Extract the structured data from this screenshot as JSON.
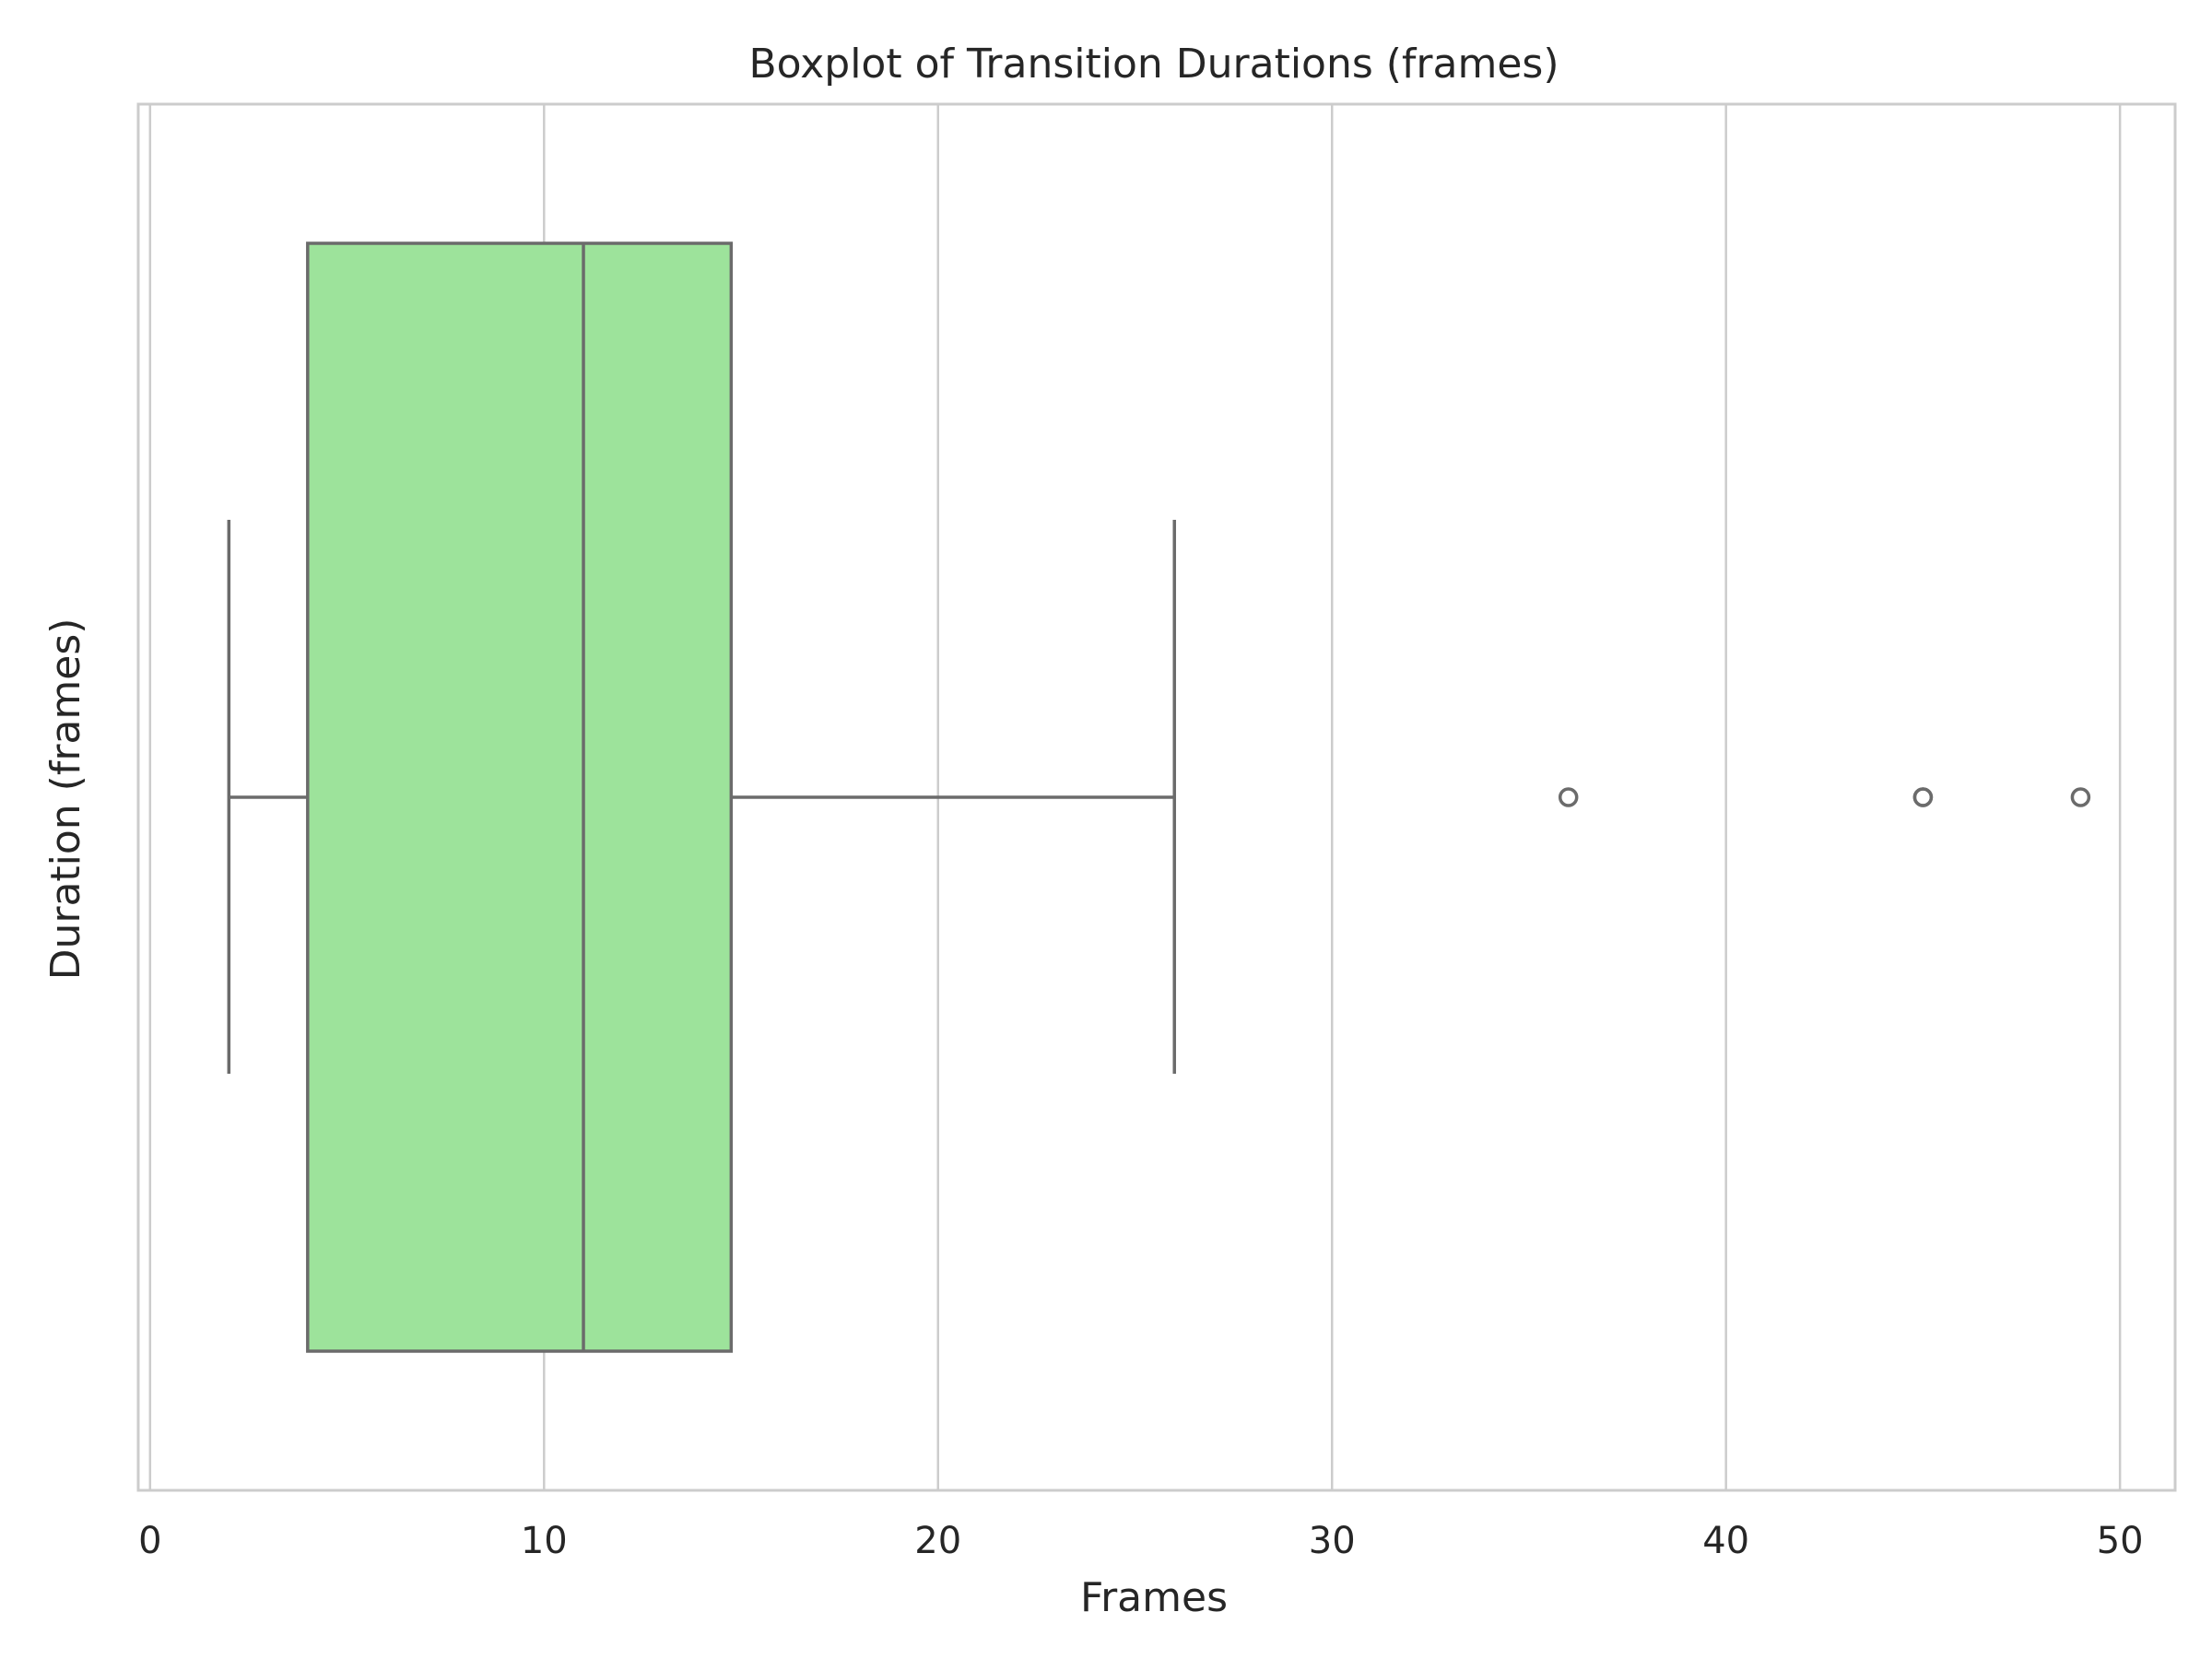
{
  "chart_data": {
    "type": "boxplot",
    "title": "Boxplot of Transition Durations (frames)",
    "xlabel": "Frames",
    "ylabel": "Duration (frames)",
    "orientation": "horizontal",
    "xlim": [
      -0.3,
      51.4
    ],
    "xticks": [
      0,
      10,
      20,
      30,
      40,
      50
    ],
    "xtick_labels": [
      "0",
      "10",
      "20",
      "30",
      "40",
      "50"
    ],
    "grid": true,
    "box": {
      "whisker_low": 2,
      "q1": 4,
      "median": 11,
      "q3": 14.75,
      "whisker_high": 26,
      "outliers": [
        36,
        45,
        45,
        49
      ]
    },
    "colors": {
      "box_fill": "#9de39b",
      "box_edge": "#6b6b6b",
      "grid": "#cccccc",
      "spine": "#cccccc"
    }
  }
}
